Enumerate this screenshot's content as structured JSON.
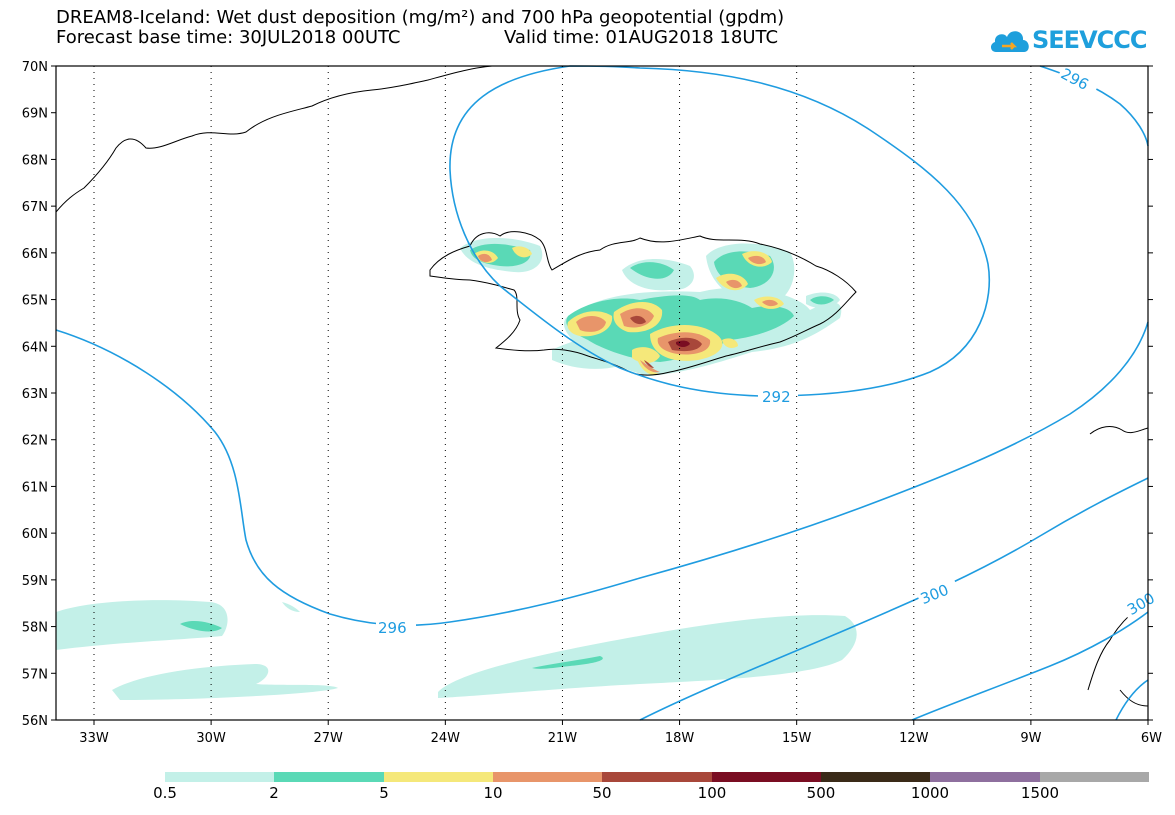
{
  "title": {
    "line1": "DREAM8-Iceland: Wet dust deposition (mg/m²) and 700 hPa geopotential (gpdm)",
    "line2a": "Forecast base time: 30JUL2018 00UTC",
    "line2b": "Valid time: 01AUG2018 18UTC"
  },
  "logo": {
    "text": "SEEVCCC",
    "icon": "cloud-logo-icon"
  },
  "axes": {
    "lat_ticks": [
      "70N",
      "69N",
      "68N",
      "67N",
      "66N",
      "65N",
      "64N",
      "63N",
      "62N",
      "61N",
      "60N",
      "59N",
      "58N",
      "57N",
      "56N"
    ],
    "lon_ticks": [
      "33W",
      "30W",
      "27W",
      "24W",
      "21W",
      "18W",
      "15W",
      "12W",
      "9W",
      "6W"
    ]
  },
  "contours": [
    {
      "label": "292",
      "color": "#1f9ce0"
    },
    {
      "label": "296",
      "color": "#1f9ce0"
    },
    {
      "label": "296",
      "color": "#1f9ce0"
    },
    {
      "label": "300",
      "color": "#1f9ce0"
    },
    {
      "label": "300",
      "color": "#1f9ce0"
    }
  ],
  "colorbar": {
    "labels": [
      "0.5",
      "2",
      "5",
      "10",
      "50",
      "100",
      "500",
      "1000",
      "1500"
    ],
    "colors": [
      "#c3f0e8",
      "#5ad9b6",
      "#f5e87a",
      "#e8956a",
      "#a8473a",
      "#7a0d22",
      "#3a2a18",
      "#8e6f9e",
      "#a8a8a8"
    ]
  }
}
